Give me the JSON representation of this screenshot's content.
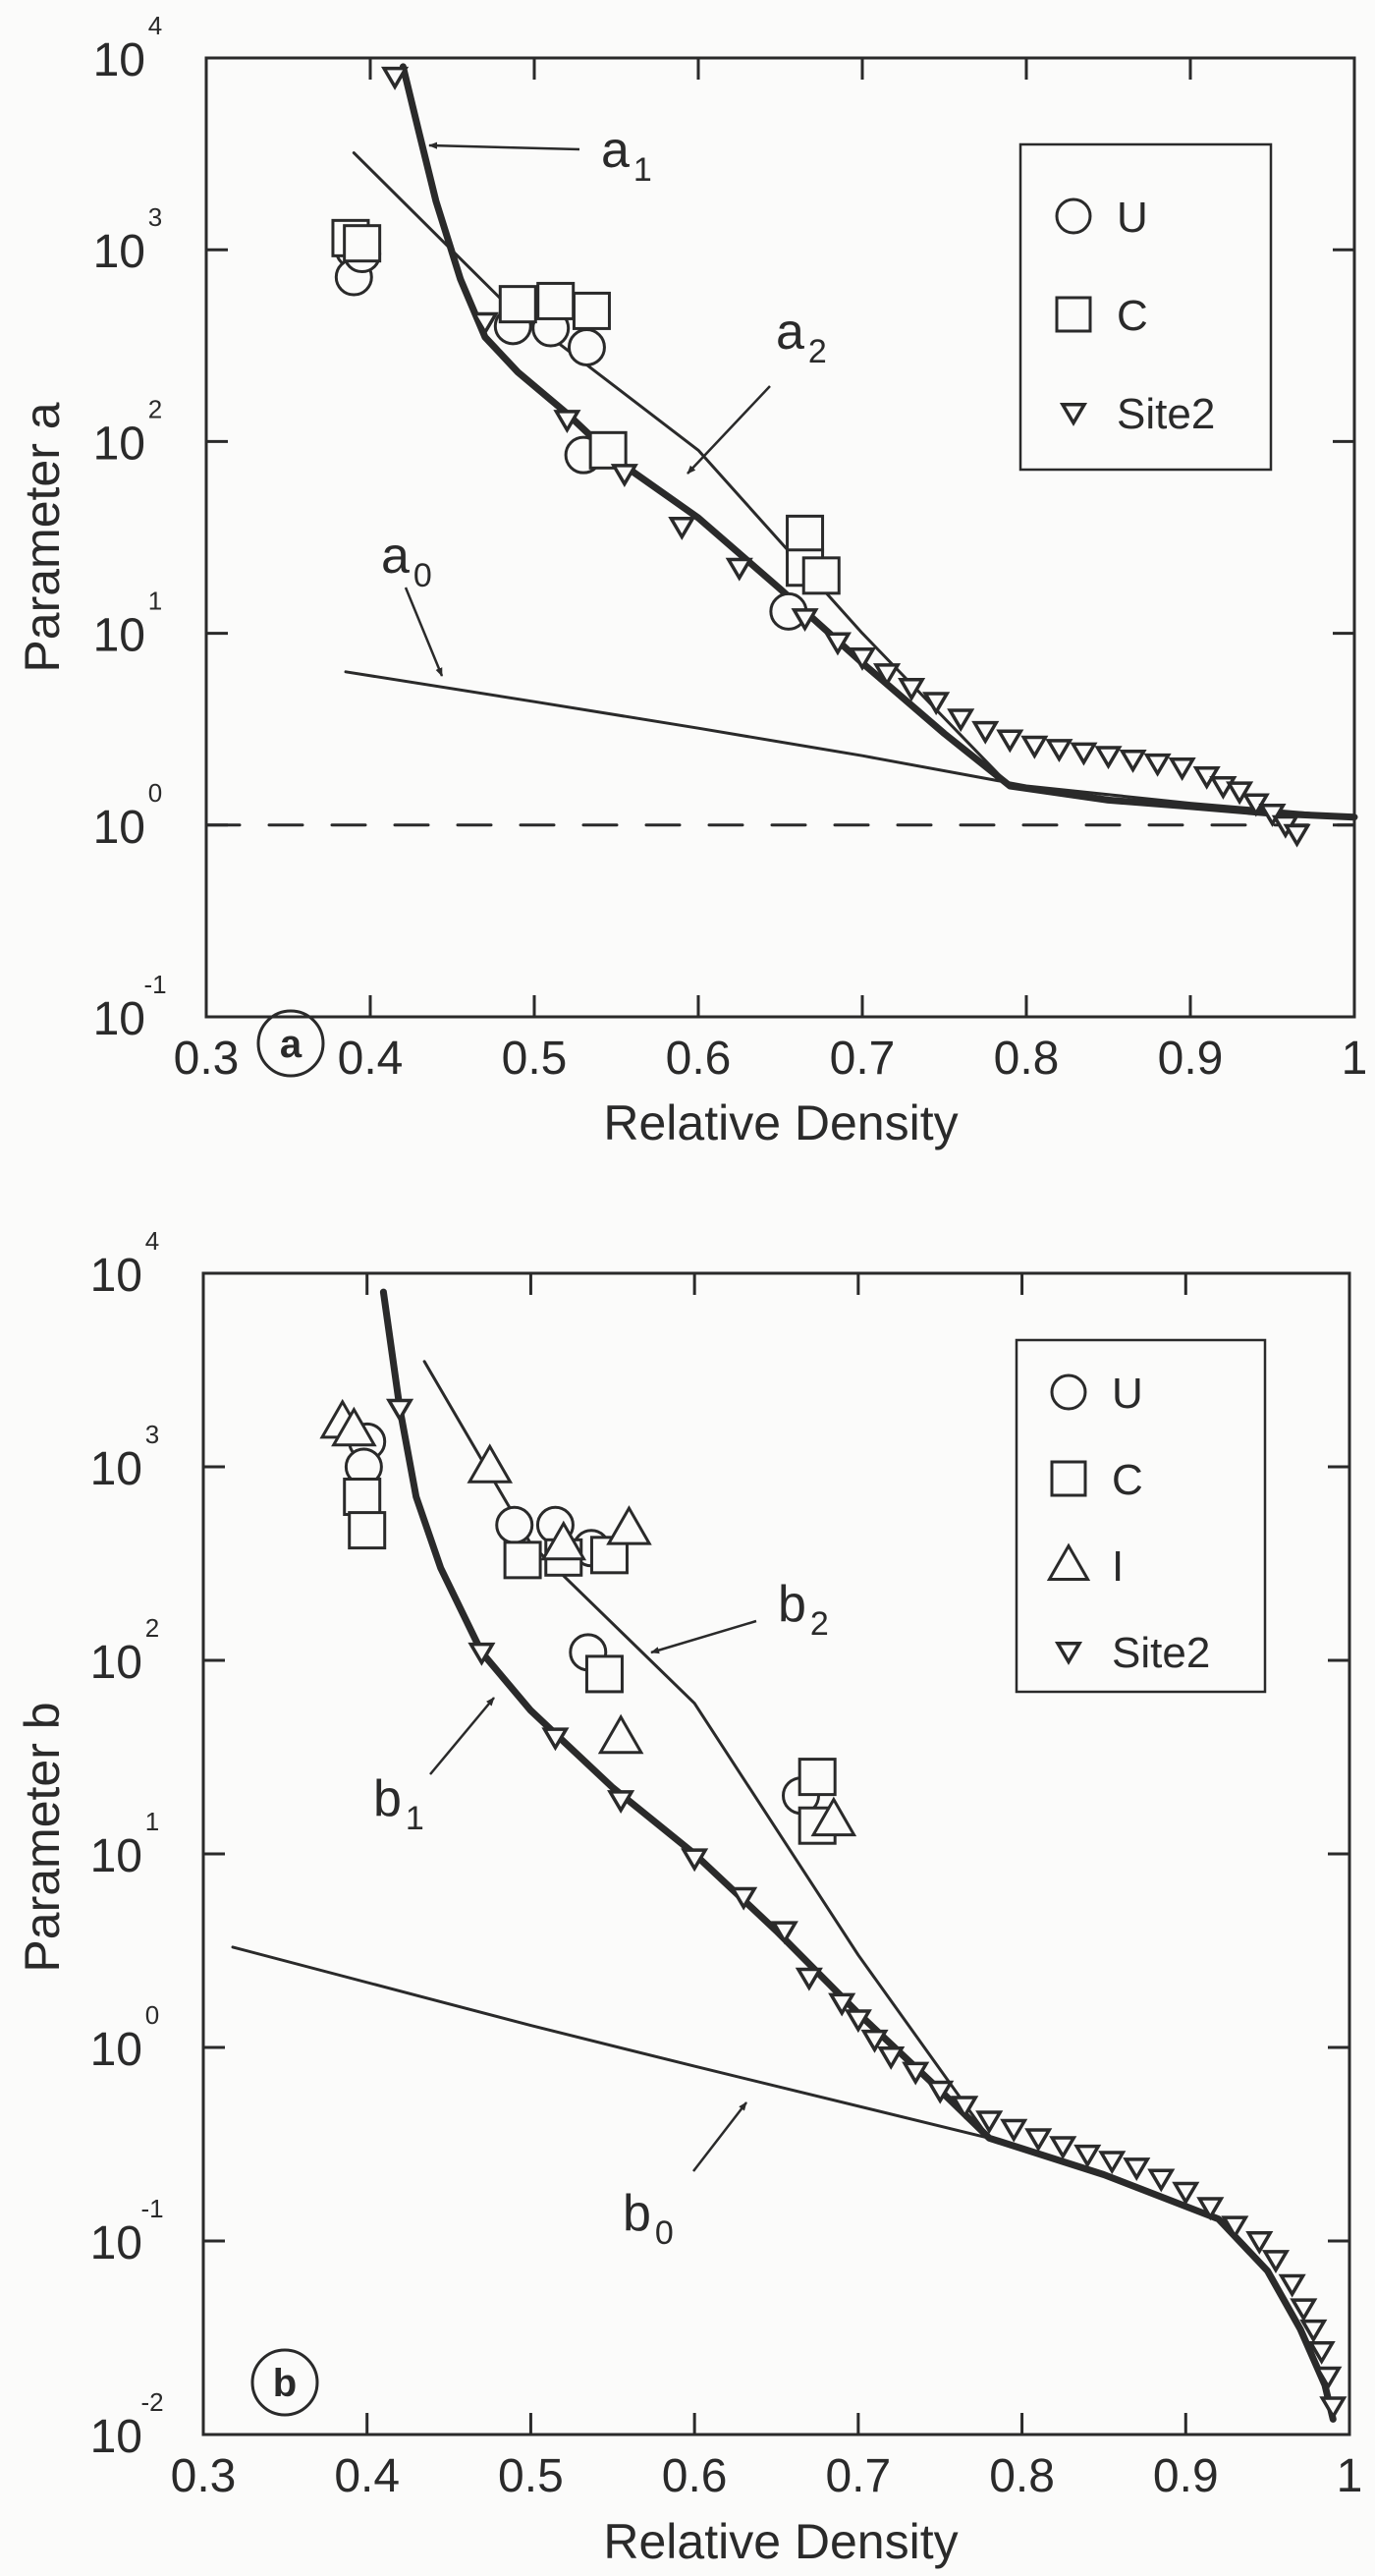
{
  "figure": {
    "panels": [
      "a",
      "b"
    ]
  },
  "chart_data": [
    {
      "type": "scatter",
      "panel_tag": "a",
      "title": "",
      "xlabel": "Relative Density",
      "ylabel": "Parameter a",
      "xlim": [
        0.3,
        1.0
      ],
      "ylim": [
        0.1,
        10000
      ],
      "yscale": "log",
      "xticks": [
        "0.3",
        "0.4",
        "0.5",
        "0.6",
        "0.7",
        "0.8",
        "0.9",
        "1"
      ],
      "yticks": [
        {
          "base": "10",
          "exp": "4"
        },
        {
          "base": "10",
          "exp": "3"
        },
        {
          "base": "10",
          "exp": "2"
        },
        {
          "base": "10",
          "exp": "1"
        },
        {
          "base": "10",
          "exp": "0"
        },
        {
          "base": "10",
          "exp": "-1"
        }
      ],
      "grid": false,
      "legend_position": "upper right",
      "legend": [
        {
          "marker": "circle",
          "label": "U"
        },
        {
          "marker": "square",
          "label": "C"
        },
        {
          "marker": "triangle-down",
          "label": "Site2"
        }
      ],
      "series": [
        {
          "name": "U",
          "marker": "circle",
          "points": [
            [
              0.39,
              1000
            ],
            [
              0.39,
              720
            ],
            [
              0.395,
              950
            ],
            [
              0.487,
              400
            ],
            [
              0.51,
              390
            ],
            [
              0.532,
              310
            ],
            [
              0.53,
              85
            ],
            [
              0.655,
              13
            ]
          ]
        },
        {
          "name": "C",
          "marker": "square",
          "points": [
            [
              0.388,
              1150
            ],
            [
              0.395,
              1080
            ],
            [
              0.49,
              520
            ],
            [
              0.513,
              540
            ],
            [
              0.535,
              480
            ],
            [
              0.545,
              90
            ],
            [
              0.665,
              33
            ],
            [
              0.665,
              22
            ],
            [
              0.675,
              20
            ]
          ]
        },
        {
          "name": "Site2",
          "marker": "triangle-down",
          "points": [
            [
              0.415,
              8000
            ],
            [
              0.47,
              420
            ],
            [
              0.52,
              130
            ],
            [
              0.555,
              68
            ],
            [
              0.59,
              36
            ],
            [
              0.625,
              22
            ],
            [
              0.665,
              12
            ],
            [
              0.685,
              9
            ],
            [
              0.7,
              7.5
            ],
            [
              0.715,
              6.2
            ],
            [
              0.73,
              5.2
            ],
            [
              0.745,
              4.4
            ],
            [
              0.76,
              3.6
            ],
            [
              0.775,
              3.1
            ],
            [
              0.79,
              2.8
            ],
            [
              0.805,
              2.6
            ],
            [
              0.82,
              2.5
            ],
            [
              0.835,
              2.4
            ],
            [
              0.85,
              2.3
            ],
            [
              0.865,
              2.2
            ],
            [
              0.88,
              2.1
            ],
            [
              0.895,
              2.0
            ],
            [
              0.91,
              1.8
            ],
            [
              0.92,
              1.6
            ],
            [
              0.93,
              1.5
            ],
            [
              0.94,
              1.3
            ],
            [
              0.95,
              1.15
            ],
            [
              0.958,
              1.0
            ],
            [
              0.965,
              0.9
            ]
          ]
        },
        {
          "name": "a1",
          "line": "thick",
          "points": [
            [
              0.42,
              9000
            ],
            [
              0.43,
              4000
            ],
            [
              0.44,
              1800
            ],
            [
              0.455,
              700
            ],
            [
              0.47,
              350
            ],
            [
              0.49,
              230
            ],
            [
              0.52,
              140
            ],
            [
              0.55,
              80
            ],
            [
              0.6,
              40
            ],
            [
              0.65,
              17
            ],
            [
              0.7,
              7
            ],
            [
              0.75,
              3
            ],
            [
              0.79,
              1.6
            ],
            [
              0.85,
              1.35
            ],
            [
              0.9,
              1.25
            ],
            [
              0.95,
              1.15
            ],
            [
              1.0,
              1.1
            ]
          ]
        },
        {
          "name": "a2",
          "line": "thin",
          "points": [
            [
              0.39,
              3200
            ],
            [
              0.48,
              550
            ],
            [
              0.6,
              90
            ],
            [
              0.7,
              10
            ],
            [
              0.79,
              1.6
            ]
          ]
        },
        {
          "name": "a0",
          "line": "thin",
          "points": [
            [
              0.385,
              6.3
            ],
            [
              0.5,
              4.4
            ],
            [
              0.6,
              3.2
            ],
            [
              0.7,
              2.3
            ],
            [
              0.8,
              1.6
            ],
            [
              0.9,
              1.3
            ],
            [
              1.0,
              1.1
            ]
          ]
        },
        {
          "name": "reference",
          "line": "dashed",
          "points": [
            [
              0.3,
              1.0
            ],
            [
              1.0,
              1.0
            ]
          ]
        }
      ],
      "annotations": [
        {
          "text": "a",
          "sub": "1",
          "x": 612,
          "y": 170,
          "arrow_from": [
            590,
            152
          ],
          "arrow_to": [
            437,
            148
          ]
        },
        {
          "text": "a",
          "sub": "2",
          "x": 790,
          "y": 355,
          "arrow_from": [
            784,
            393
          ],
          "arrow_to": [
            700,
            482
          ]
        },
        {
          "text": "a",
          "sub": "0",
          "x": 388,
          "y": 583,
          "arrow_from": [
            413,
            598
          ],
          "arrow_to": [
            450,
            688
          ]
        }
      ]
    },
    {
      "type": "scatter",
      "panel_tag": "b",
      "title": "",
      "xlabel": "Relative Density",
      "ylabel": "Parameter b",
      "xlim": [
        0.3,
        1.0
      ],
      "ylim": [
        0.01,
        10000
      ],
      "yscale": "log",
      "xticks": [
        "0.3",
        "0.4",
        "0.5",
        "0.6",
        "0.7",
        "0.8",
        "0.9",
        "1"
      ],
      "yticks": [
        {
          "base": "10",
          "exp": "4"
        },
        {
          "base": "10",
          "exp": "3"
        },
        {
          "base": "10",
          "exp": "2"
        },
        {
          "base": "10",
          "exp": "1"
        },
        {
          "base": "10",
          "exp": "0"
        },
        {
          "base": "10",
          "exp": "-1"
        },
        {
          "base": "10",
          "exp": "-2"
        }
      ],
      "grid": false,
      "legend_position": "upper right",
      "legend": [
        {
          "marker": "circle",
          "label": "U"
        },
        {
          "marker": "square",
          "label": "C"
        },
        {
          "marker": "triangle-up",
          "label": "I"
        },
        {
          "marker": "triangle-down",
          "label": "Site2"
        }
      ],
      "series": [
        {
          "name": "U",
          "marker": "circle",
          "points": [
            [
              0.4,
              1350
            ],
            [
              0.398,
              1000
            ],
            [
              0.49,
              500
            ],
            [
              0.515,
              500
            ],
            [
              0.537,
              380
            ],
            [
              0.535,
              110
            ],
            [
              0.665,
              20
            ]
          ]
        },
        {
          "name": "C",
          "marker": "square",
          "points": [
            [
              0.397,
              700
            ],
            [
              0.4,
              470
            ],
            [
              0.495,
              330
            ],
            [
              0.52,
              340
            ],
            [
              0.548,
              350
            ],
            [
              0.545,
              85
            ],
            [
              0.675,
              25
            ],
            [
              0.675,
              14
            ]
          ]
        },
        {
          "name": "I",
          "marker": "triangle-up",
          "points": [
            [
              0.385,
              1700
            ],
            [
              0.392,
              1550
            ],
            [
              0.475,
              1000
            ],
            [
              0.52,
              400
            ],
            [
              0.56,
              480
            ],
            [
              0.555,
              40
            ],
            [
              0.685,
              15
            ]
          ]
        },
        {
          "name": "Site2",
          "marker": "triangle-down",
          "points": [
            [
              0.42,
              2000
            ],
            [
              0.47,
              110
            ],
            [
              0.515,
              40
            ],
            [
              0.555,
              19
            ],
            [
              0.6,
              9.5
            ],
            [
              0.63,
              6
            ],
            [
              0.655,
              4
            ],
            [
              0.67,
              2.3
            ],
            [
              0.69,
              1.7
            ],
            [
              0.7,
              1.4
            ],
            [
              0.71,
              1.1
            ],
            [
              0.72,
              0.9
            ],
            [
              0.735,
              0.75
            ],
            [
              0.75,
              0.6
            ],
            [
              0.765,
              0.5
            ],
            [
              0.78,
              0.42
            ],
            [
              0.795,
              0.38
            ],
            [
              0.81,
              0.34
            ],
            [
              0.825,
              0.31
            ],
            [
              0.84,
              0.28
            ],
            [
              0.855,
              0.26
            ],
            [
              0.87,
              0.24
            ],
            [
              0.885,
              0.21
            ],
            [
              0.9,
              0.18
            ],
            [
              0.915,
              0.15
            ],
            [
              0.93,
              0.12
            ],
            [
              0.945,
              0.1
            ],
            [
              0.955,
              0.08
            ],
            [
              0.965,
              0.06
            ],
            [
              0.972,
              0.045
            ],
            [
              0.978,
              0.035
            ],
            [
              0.983,
              0.027
            ],
            [
              0.987,
              0.02
            ],
            [
              0.99,
              0.014
            ]
          ]
        },
        {
          "name": "b1",
          "line": "thick",
          "points": [
            [
              0.41,
              8000
            ],
            [
              0.42,
              2000
            ],
            [
              0.43,
              700
            ],
            [
              0.445,
              300
            ],
            [
              0.47,
              110
            ],
            [
              0.5,
              55
            ],
            [
              0.55,
              22
            ],
            [
              0.6,
              10
            ],
            [
              0.65,
              4
            ],
            [
              0.7,
              1.5
            ],
            [
              0.75,
              0.6
            ],
            [
              0.78,
              0.34
            ],
            [
              0.85,
              0.22
            ],
            [
              0.92,
              0.13
            ],
            [
              0.95,
              0.07
            ],
            [
              0.97,
              0.035
            ],
            [
              0.985,
              0.018
            ],
            [
              0.99,
              0.012
            ]
          ]
        },
        {
          "name": "b2",
          "line": "thin",
          "points": [
            [
              0.435,
              3500
            ],
            [
              0.5,
              400
            ],
            [
              0.6,
              60
            ],
            [
              0.7,
              3
            ],
            [
              0.78,
              0.34
            ]
          ]
        },
        {
          "name": "b0",
          "line": "thin",
          "points": [
            [
              0.318,
              3.3
            ],
            [
              0.5,
              1.3
            ],
            [
              0.6,
              0.8
            ],
            [
              0.78,
              0.34
            ]
          ]
        }
      ],
      "annotations": [
        {
          "text": "b",
          "sub": "1",
          "x": 380,
          "y": 1848,
          "arrow_from": [
            438,
            1806
          ],
          "arrow_to": [
            503,
            1728
          ]
        },
        {
          "text": "b",
          "sub": "2",
          "x": 792,
          "y": 1650,
          "arrow_from": [
            770,
            1650
          ],
          "arrow_to": [
            663,
            1682
          ]
        },
        {
          "text": "b",
          "sub": "0",
          "x": 634,
          "y": 2270,
          "arrow_from": [
            706,
            2210
          ],
          "arrow_to": [
            760,
            2140
          ]
        }
      ]
    }
  ]
}
